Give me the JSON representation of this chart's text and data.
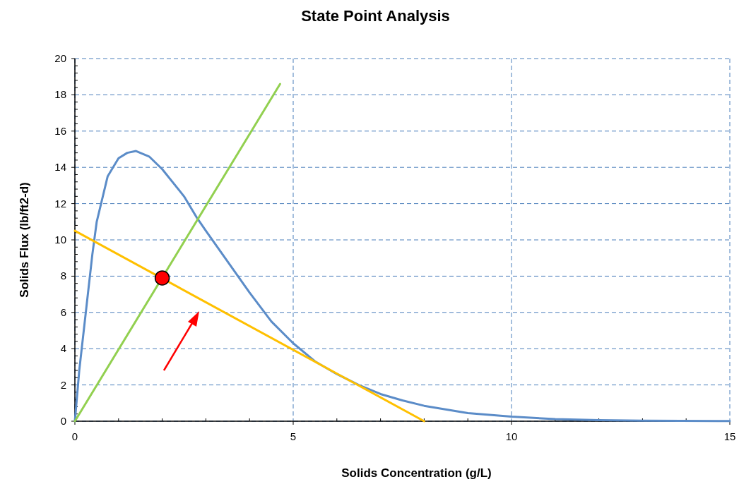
{
  "chart_data": {
    "type": "line",
    "title": "State Point Analysis",
    "xlabel": "Solids Concentration (g/L)",
    "ylabel": "Solids Flux (lb/ft2-d)",
    "xlim": [
      0,
      15
    ],
    "ylim": [
      0,
      20
    ],
    "xticks": [
      0,
      5,
      10,
      15
    ],
    "yticks": [
      0,
      2,
      4,
      6,
      8,
      10,
      12,
      14,
      16,
      18,
      20
    ],
    "grid": true,
    "marker": "none",
    "line_style": "solid",
    "series": [
      {
        "color": "#5b8cc8",
        "x": [
          0,
          0.1,
          0.25,
          0.4,
          0.5,
          0.75,
          1,
          1.2,
          1.4,
          1.7,
          2,
          2.5,
          2.8,
          3,
          3.5,
          4,
          4.5,
          5,
          5.5,
          6,
          6.5,
          7,
          7.5,
          8,
          9,
          10,
          11,
          12,
          13,
          15
        ],
        "values": [
          0,
          2.8,
          6,
          9.2,
          11,
          13.5,
          14.5,
          14.8,
          14.9,
          14.6,
          13.9,
          12.4,
          11.2,
          10.5,
          8.8,
          7.1,
          5.5,
          4.3,
          3.3,
          2.6,
          2,
          1.5,
          1.15,
          0.85,
          0.45,
          0.25,
          0.12,
          0.06,
          0.03,
          0.01
        ]
      },
      {
        "color": "#92d050",
        "x": [
          0,
          4.7
        ],
        "values": [
          0,
          18.6
        ]
      },
      {
        "color": "#ffc000",
        "x": [
          0,
          8
        ],
        "values": [
          10.5,
          0
        ]
      },
      {
        "type": "scatter",
        "color": "#ff0000",
        "marker": "circle",
        "x": [
          2
        ],
        "values": [
          7.9
        ]
      }
    ]
  }
}
